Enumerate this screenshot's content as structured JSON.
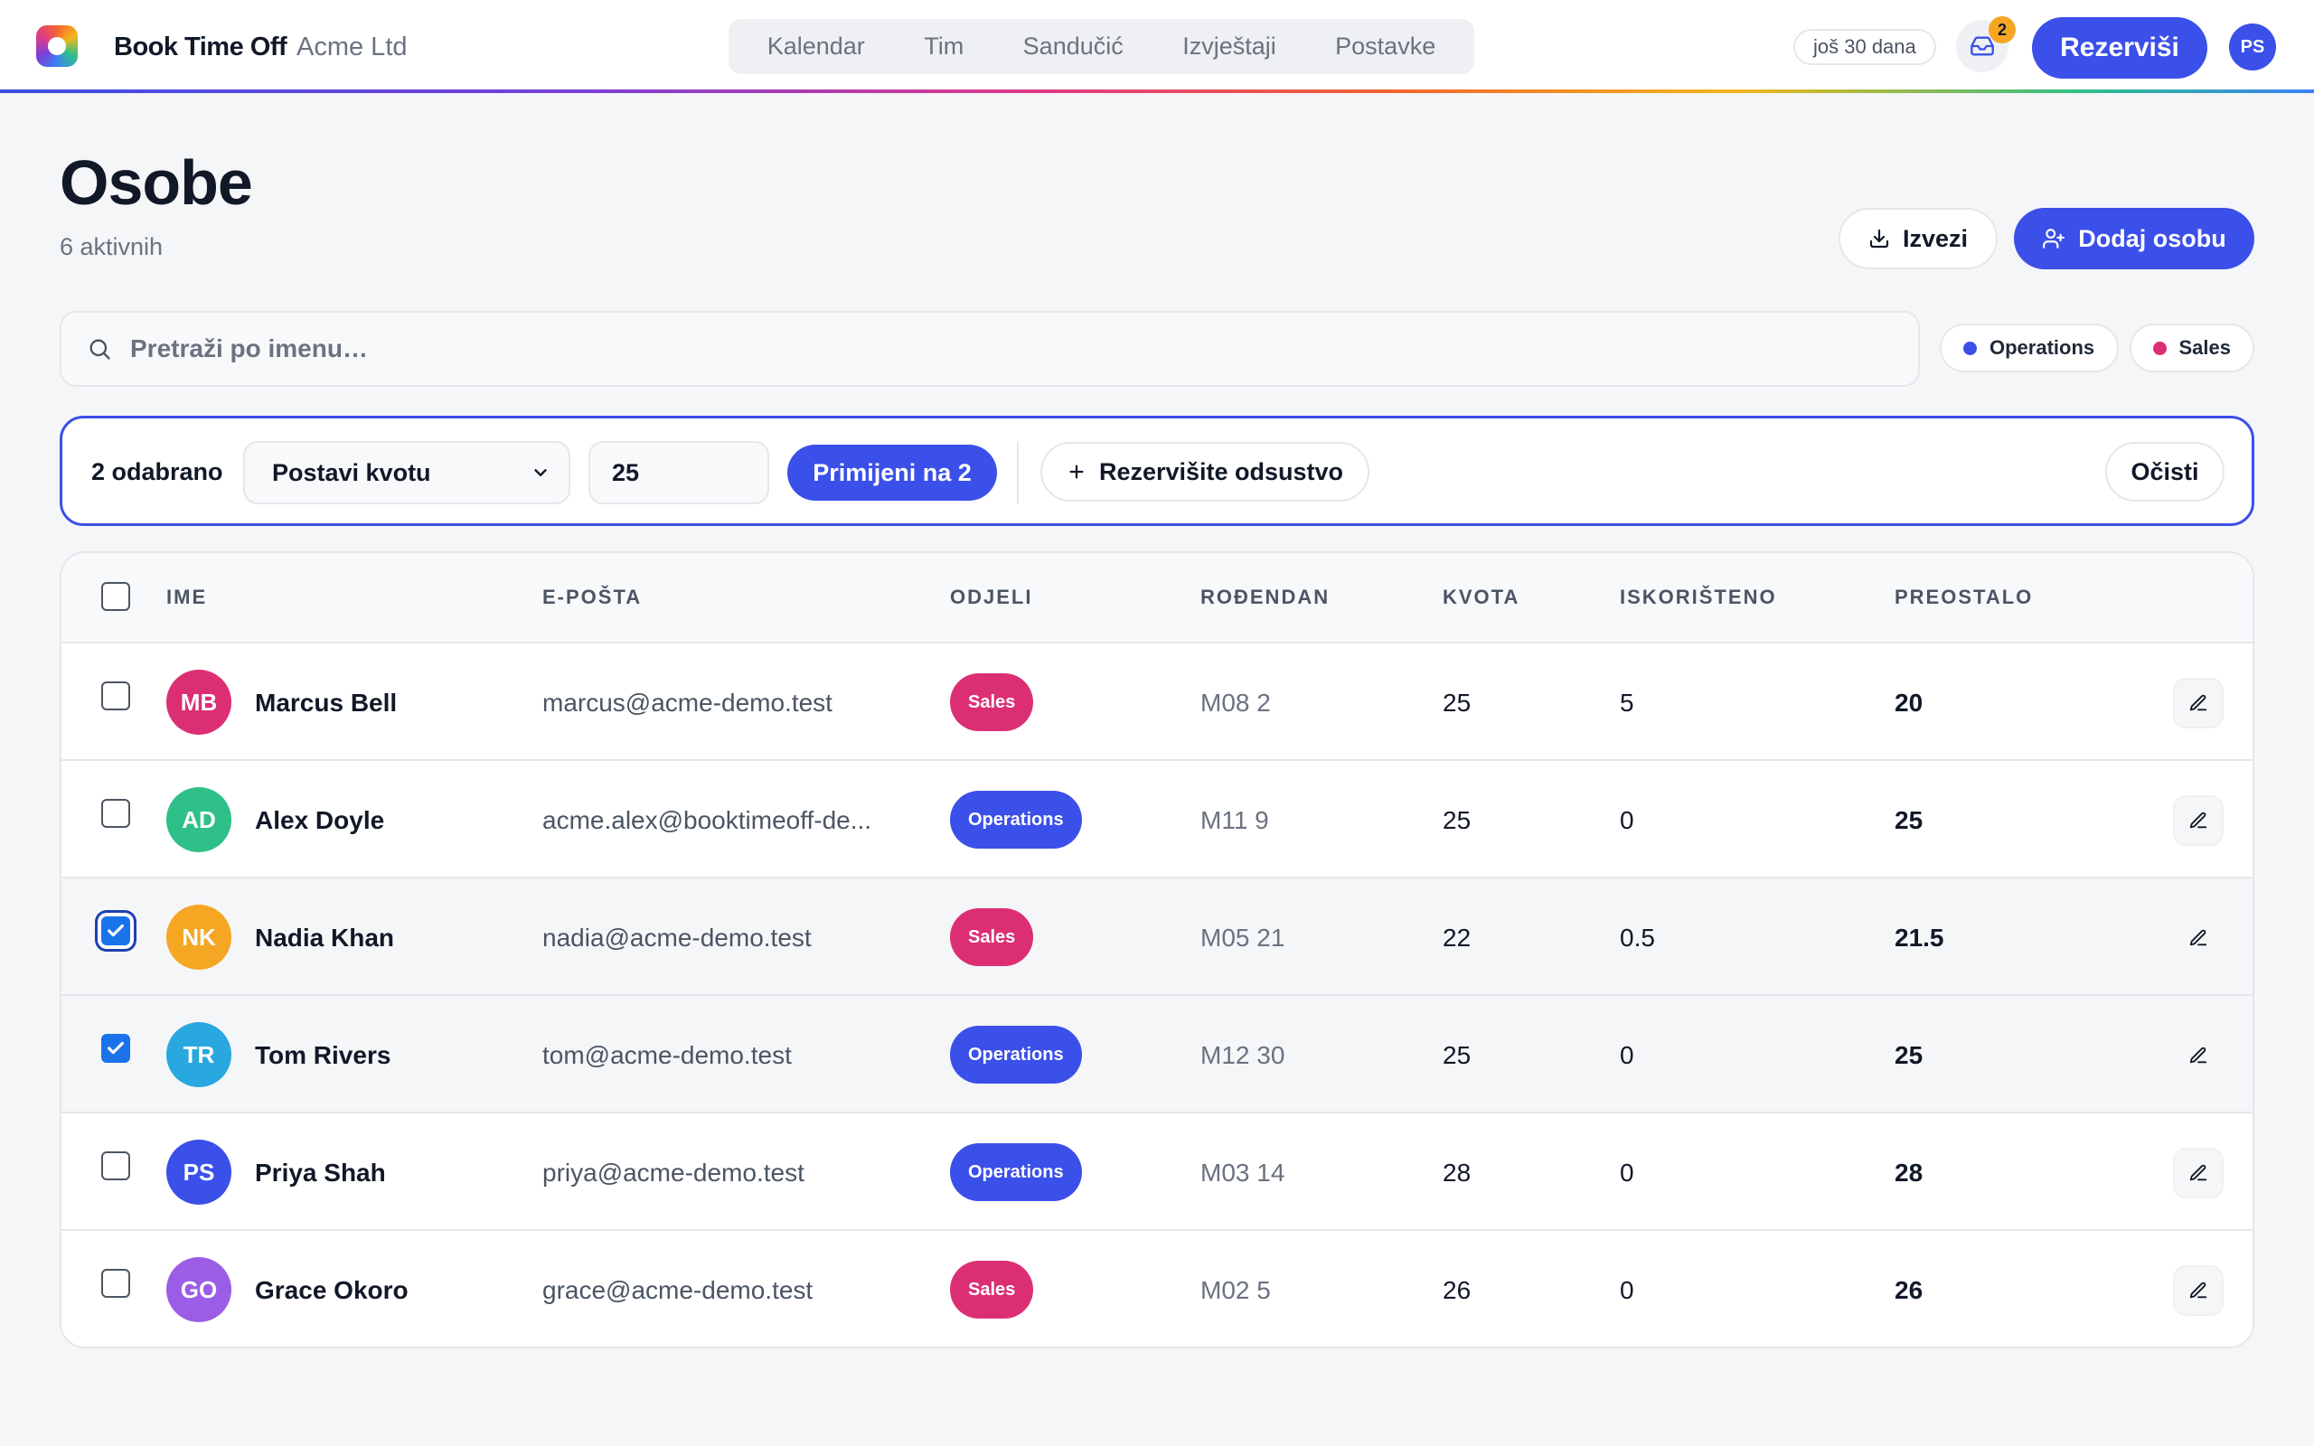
{
  "app": {
    "brand": "Book Time Off",
    "org": "Acme Ltd",
    "nav": [
      "Kalendar",
      "Tim",
      "Sandučić",
      "Izvještaji",
      "Postavke"
    ],
    "trial": "još 30 dana",
    "inbox_count": "2",
    "book_label": "Rezerviši",
    "user_initials": "PS"
  },
  "page": {
    "title": "Osobe",
    "subtitle": "6 aktivnih",
    "export_label": "Izvezi",
    "add_label": "Dodaj osobu"
  },
  "search": {
    "placeholder": "Pretraži po imenu…"
  },
  "filters": [
    {
      "label": "Operations",
      "color": "#3b4fe9"
    },
    {
      "label": "Sales",
      "color": "#dc2f73"
    }
  ],
  "bulk": {
    "count_label": "2 odabrano",
    "action_selected": "Postavi kvotu",
    "quota_value": "25",
    "apply_label": "Primijeni na 2",
    "timeoff_label": "Rezervišite odsustvo",
    "clear_label": "Očisti"
  },
  "table": {
    "columns": [
      "IME",
      "E-POŠTA",
      "ODJELI",
      "ROĐENDAN",
      "KVOTA",
      "ISKORIŠTENO",
      "PREOSTALO"
    ],
    "rows": [
      {
        "initials": "MB",
        "avatar_color": "#dc2f73",
        "name": "Marcus Bell",
        "email": "marcus@acme-demo.test",
        "dept": "Sales",
        "dept_color": "#dc2f73",
        "birthday": "M08 2",
        "quota": "25",
        "used": "5",
        "remaining": "20",
        "checked": false
      },
      {
        "initials": "AD",
        "avatar_color": "#2fbf88",
        "name": "Alex Doyle",
        "email": "acme.alex@booktimeoff-de...",
        "dept": "Operations",
        "dept_color": "#3b4fe9",
        "birthday": "M11 9",
        "quota": "25",
        "used": "0",
        "remaining": "25",
        "checked": false
      },
      {
        "initials": "NK",
        "avatar_color": "#f5a623",
        "name": "Nadia Khan",
        "email": "nadia@acme-demo.test",
        "dept": "Sales",
        "dept_color": "#dc2f73",
        "birthday": "M05 21",
        "quota": "22",
        "used": "0.5",
        "remaining": "21.5",
        "checked": true
      },
      {
        "initials": "TR",
        "avatar_color": "#29a8e0",
        "name": "Tom Rivers",
        "email": "tom@acme-demo.test",
        "dept": "Operations",
        "dept_color": "#3b4fe9",
        "birthday": "M12 30",
        "quota": "25",
        "used": "0",
        "remaining": "25",
        "checked": true
      },
      {
        "initials": "PS",
        "avatar_color": "#3b4fe9",
        "name": "Priya Shah",
        "email": "priya@acme-demo.test",
        "dept": "Operations",
        "dept_color": "#3b4fe9",
        "birthday": "M03 14",
        "quota": "28",
        "used": "0",
        "remaining": "28",
        "checked": false
      },
      {
        "initials": "GO",
        "avatar_color": "#9b5de5",
        "name": "Grace Okoro",
        "email": "grace@acme-demo.test",
        "dept": "Sales",
        "dept_color": "#dc2f73",
        "birthday": "M02 5",
        "quota": "26",
        "used": "0",
        "remaining": "26",
        "checked": false
      }
    ]
  }
}
